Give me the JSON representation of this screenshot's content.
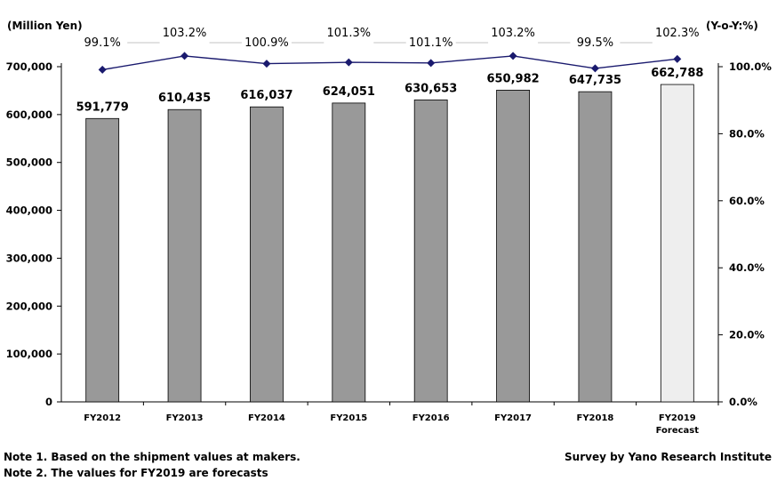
{
  "chart_data": {
    "type": "bar",
    "categories": [
      "FY2012",
      "FY2013",
      "FY2014",
      "FY2015",
      "FY2016",
      "FY2017",
      "FY2018",
      "FY2019"
    ],
    "category_sublabels": [
      "",
      "",
      "",
      "",
      "",
      "",
      "",
      "Forecast"
    ],
    "values": [
      591779,
      610435,
      616037,
      624051,
      630653,
      650982,
      647735,
      662788
    ],
    "value_labels": [
      "591,779",
      "610,435",
      "616,037",
      "624,051",
      "630,653",
      "650,982",
      "647,735",
      "662,788"
    ],
    "forecast_flags": [
      false,
      false,
      false,
      false,
      false,
      false,
      false,
      true
    ],
    "ylabel": "(Million Yen)",
    "ylim": [
      0,
      700000
    ],
    "y_ticks": [
      0,
      100000,
      200000,
      300000,
      400000,
      500000,
      600000,
      700000
    ],
    "y_tick_labels": [
      "0",
      "100,000",
      "200,000",
      "300,000",
      "400,000",
      "500,000",
      "600,000",
      "700,000"
    ],
    "secondary": {
      "type": "line",
      "name": "Y-o-Y",
      "ylabel": "(Y-o-Y:%)",
      "ylim": [
        0,
        100
      ],
      "values": [
        99.1,
        103.2,
        100.9,
        101.3,
        101.1,
        103.2,
        99.5,
        102.3
      ],
      "value_labels": [
        "99.1%",
        "103.2%",
        "100.9%",
        "101.3%",
        "101.1%",
        "103.2%",
        "99.5%",
        "102.3%"
      ],
      "y_ticks": [
        0,
        20,
        40,
        60,
        80,
        100
      ],
      "y_tick_labels": [
        "0.0%",
        "20.0%",
        "40.0%",
        "60.0%",
        "80.0%",
        "100.0%"
      ]
    },
    "colors": {
      "bar": "#999999",
      "bar_forecast": "#eeeeee",
      "bar_edge": "#000000",
      "line": "#1a1a6e",
      "marker": "#1a1a6e"
    }
  },
  "notes": [
    "Note 1. Based on the shipment values at makers.",
    "Note 2. The values for FY2019 are forecasts"
  ],
  "source": "Survey by Yano Research Institute"
}
